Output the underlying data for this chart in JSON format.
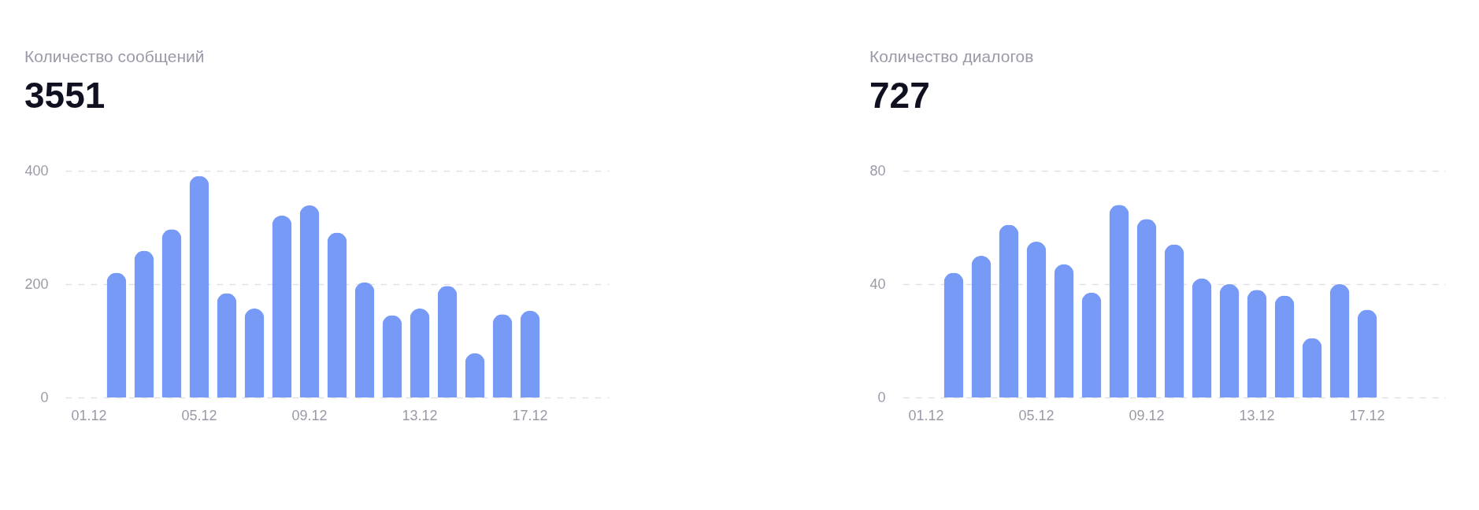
{
  "chart_data": [
    {
      "type": "bar",
      "title": "Количество сообщений",
      "subtitle": "3551",
      "categories": [
        "01.12",
        null,
        null,
        null,
        "05.12",
        null,
        null,
        null,
        "09.12",
        null,
        null,
        null,
        "13.12",
        null,
        null,
        null,
        "17.12",
        null,
        null
      ],
      "color": "#779af7",
      "values": [
        null,
        220,
        259,
        297,
        391,
        184,
        157,
        321,
        339,
        291,
        203,
        145,
        157,
        197,
        78,
        147,
        153,
        null,
        null
      ],
      "ylim": [
        0,
        400
      ],
      "yticks": [
        0,
        200,
        400
      ],
      "grid": "y"
    },
    {
      "type": "bar",
      "title": "Количество диалогов",
      "subtitle": "727",
      "categories": [
        "01.12",
        null,
        null,
        null,
        "05.12",
        null,
        null,
        null,
        "09.12",
        null,
        null,
        null,
        "13.12",
        null,
        null,
        null,
        "17.12",
        null,
        null
      ],
      "color": "#779af7",
      "values": [
        null,
        44,
        50,
        61,
        55,
        47,
        37,
        68,
        63,
        54,
        42,
        40,
        38,
        36,
        21,
        40,
        31,
        null,
        null
      ],
      "ylim": [
        0,
        80
      ],
      "yticks": [
        0,
        40,
        80
      ],
      "grid": "y"
    }
  ]
}
